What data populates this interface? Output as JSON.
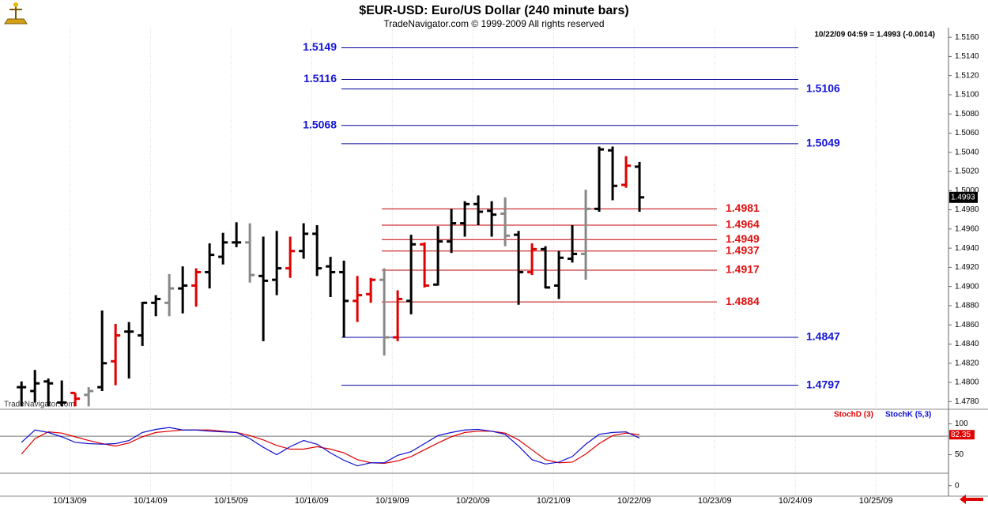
{
  "chart_data": [
    {
      "type": "ohlc",
      "title": "$EUR-USD:  Euro/US Dollar  (240 minute bars)",
      "subtitle": "TradeNavigator.com © 1999-2009 All rights reserved",
      "quote": "10/22/09 04:59 = 1.4993 (-0.0014)",
      "watermark": "TradeNavigator.com",
      "last": 1.4993,
      "xlim": [
        -1.6,
        69
      ],
      "xticks": [
        {
          "value": 3.6,
          "label": "10/13/09"
        },
        {
          "value": 9.6,
          "label": "10/14/09"
        },
        {
          "value": 15.6,
          "label": "10/15/09"
        },
        {
          "value": 21.6,
          "label": "10/16/09"
        },
        {
          "value": 27.6,
          "label": "10/19/09"
        },
        {
          "value": 33.6,
          "label": "10/20/09"
        },
        {
          "value": 39.6,
          "label": "10/21/09"
        },
        {
          "value": 45.6,
          "label": "10/22/09"
        },
        {
          "value": 51.6,
          "label": "10/23/09"
        },
        {
          "value": 57.6,
          "label": "10/24/09"
        },
        {
          "value": 63.6,
          "label": "10/25/09"
        }
      ],
      "ylim": [
        1.4772,
        1.517
      ],
      "yticks": [
        {
          "value": 1.478,
          "label": "1.4780"
        },
        {
          "value": 1.48,
          "label": "1.4800"
        },
        {
          "value": 1.482,
          "label": "1.4820"
        },
        {
          "value": 1.484,
          "label": "1.4840"
        },
        {
          "value": 1.486,
          "label": "1.4860"
        },
        {
          "value": 1.488,
          "label": "1.4880"
        },
        {
          "value": 1.49,
          "label": "1.4900"
        },
        {
          "value": 1.492,
          "label": "1.4920"
        },
        {
          "value": 1.494,
          "label": "1.4940"
        },
        {
          "value": 1.496,
          "label": "1.4960"
        },
        {
          "value": 1.498,
          "label": "1.4980"
        },
        {
          "value": 1.5,
          "label": "1.5000"
        },
        {
          "value": 1.502,
          "label": "1.5020"
        },
        {
          "value": 1.504,
          "label": "1.5040"
        },
        {
          "value": 1.506,
          "label": "1.5060"
        },
        {
          "value": 1.508,
          "label": "1.5080"
        },
        {
          "value": 1.51,
          "label": "1.5100"
        },
        {
          "value": 1.512,
          "label": "1.5120"
        },
        {
          "value": 1.514,
          "label": "1.5140"
        },
        {
          "value": 1.516,
          "label": "1.5160"
        }
      ],
      "grid": true,
      "open": [
        1.4795,
        1.4791,
        1.4801,
        1.4779,
        1.4789,
        1.4787,
        1.4795,
        1.4822,
        1.4853,
        1.4849,
        1.4883,
        1.4883,
        1.4898,
        1.4901,
        1.4915,
        1.4931,
        1.4946,
        1.4946,
        1.4911,
        1.4907,
        1.4919,
        1.4937,
        1.4955,
        1.4921,
        1.4915,
        1.4885,
        1.4892,
        1.4907,
        1.4847,
        1.4885,
        1.4944,
        1.4902,
        1.4947,
        1.4966,
        1.4986,
        1.4979,
        1.4976,
        1.4954,
        1.4915,
        1.4939,
        1.4901,
        1.4929,
        1.4934,
        1.4981,
        1.5042,
        1.5006,
        1.5025
      ],
      "high": [
        1.4801,
        1.4813,
        1.4804,
        1.4802,
        1.4789,
        1.4795,
        1.4875,
        1.4861,
        1.4863,
        1.4884,
        1.4891,
        1.4913,
        1.4921,
        1.4919,
        1.4945,
        1.4956,
        1.4967,
        1.4966,
        1.4952,
        1.4958,
        1.4952,
        1.4966,
        1.4964,
        1.4931,
        1.4927,
        1.4911,
        1.4909,
        1.4919,
        1.4896,
        1.4954,
        1.4946,
        1.4963,
        1.4981,
        1.4989,
        1.4995,
        1.4989,
        1.4993,
        1.4958,
        1.4945,
        1.4942,
        1.4937,
        1.4964,
        1.5001,
        1.5046,
        1.5046,
        1.5036,
        1.503
      ],
      "low": [
        1.4775,
        1.4779,
        1.4775,
        1.4775,
        1.4775,
        1.4775,
        1.4791,
        1.4797,
        1.4804,
        1.4838,
        1.4869,
        1.4869,
        1.4872,
        1.4879,
        1.4898,
        1.4923,
        1.4941,
        1.4904,
        1.4843,
        1.4891,
        1.4909,
        1.4929,
        1.4911,
        1.4889,
        1.4847,
        1.4863,
        1.4883,
        1.4828,
        1.4843,
        1.4871,
        1.4899,
        1.4901,
        1.4935,
        1.4952,
        1.4964,
        1.4952,
        1.4942,
        1.4881,
        1.4912,
        1.4898,
        1.4887,
        1.4925,
        1.4907,
        1.4978,
        1.499,
        1.5003,
        1.4978
      ],
      "close": [
        1.4795,
        1.4799,
        1.4799,
        1.4779,
        1.4783,
        1.4791,
        1.482,
        1.4849,
        1.4853,
        1.4883,
        1.4887,
        1.4898,
        1.4901,
        1.4915,
        1.4933,
        1.4946,
        1.4946,
        1.4912,
        1.4906,
        1.4919,
        1.4937,
        1.4955,
        1.4919,
        1.4915,
        1.4885,
        1.4891,
        1.4907,
        1.4847,
        1.4887,
        1.4944,
        1.4901,
        1.4947,
        1.4966,
        1.4986,
        1.4978,
        1.4975,
        1.4953,
        1.4915,
        1.4939,
        1.4899,
        1.493,
        1.4934,
        1.4981,
        1.5043,
        1.5005,
        1.5026,
        1.4993
      ],
      "colors": [
        "#000",
        "#000",
        "#000",
        "#000",
        "#e00000",
        "#888",
        "#000",
        "#e00000",
        "#000",
        "#000",
        "#000",
        "#888",
        "#000",
        "#e00000",
        "#000",
        "#000",
        "#000",
        "#888",
        "#000",
        "#000",
        "#e00000",
        "#000",
        "#000",
        "#000",
        "#000",
        "#e00000",
        "#e00000",
        "#888",
        "#e00000",
        "#000",
        "#e00000",
        "#000",
        "#000",
        "#000",
        "#000",
        "#000",
        "#888",
        "#000",
        "#e00000",
        "#000",
        "#000",
        "#000",
        "#888",
        "#000",
        "#000",
        "#e00000",
        "#000"
      ],
      "level_groups": [
        {
          "color": "#1414d8",
          "line_color": "#000099",
          "values": [
            1.5149,
            1.5116,
            1.5106,
            1.5068,
            1.5049,
            1.4847,
            1.4797
          ]
        },
        {
          "color": "#e01010",
          "line_color": "#c00000",
          "values": [
            1.4981,
            1.4964,
            1.4949,
            1.4937,
            1.4917,
            1.4884
          ]
        }
      ]
    },
    {
      "type": "line",
      "ylim": [
        -17,
        121
      ],
      "yticks": [
        0,
        50,
        100
      ],
      "hlines": [
        20,
        80
      ],
      "series": [
        {
          "name": "StochD (3)",
          "color": "#e00000",
          "values": [
            51,
            76,
            87,
            85,
            79,
            73,
            68,
            64,
            69,
            79,
            86,
            88,
            90,
            90,
            90,
            88,
            86,
            81,
            74,
            65,
            59,
            59,
            63,
            59,
            53,
            42,
            37,
            36,
            40,
            47,
            58,
            69,
            79,
            86,
            88,
            88,
            85,
            74,
            58,
            42,
            37,
            38,
            51,
            68,
            81,
            85,
            82.35
          ]
        },
        {
          "name": "StochK (5,3)",
          "color": "#1010d0",
          "values": [
            70,
            90,
            86,
            79,
            70,
            68,
            67,
            68,
            73,
            86,
            91,
            94,
            90,
            90,
            88,
            87,
            86,
            76,
            62,
            50,
            63,
            73,
            67,
            53,
            41,
            32,
            37,
            37,
            49,
            55,
            68,
            81,
            86,
            90,
            91,
            88,
            83,
            64,
            42,
            35,
            38,
            47,
            67,
            83,
            86,
            87,
            77
          ]
        }
      ]
    }
  ]
}
